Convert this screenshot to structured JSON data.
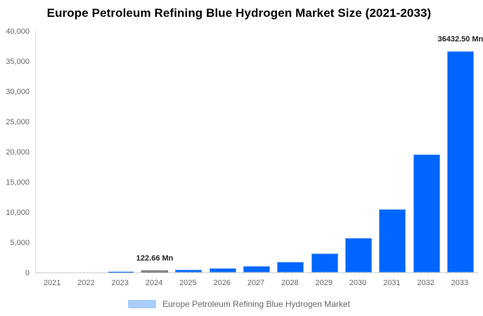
{
  "title": "Europe Petroleum Refining Blue Hydrogen Market Size (2021-2033)",
  "legend": {
    "label": "Europe Petroleum Refining Blue Hydrogen Market",
    "swatch_color": "#a9cdf8"
  },
  "chart_data": {
    "type": "bar",
    "title": "Europe Petroleum Refining Blue Hydrogen Market Size (2021-2033)",
    "series_name": "Europe Petroleum Refining Blue Hydrogen Market",
    "categories": [
      "2021",
      "2022",
      "2023",
      "2024",
      "2025",
      "2026",
      "2027",
      "2028",
      "2029",
      "2030",
      "2031",
      "2032",
      "2033"
    ],
    "values": [
      18.4,
      34.6,
      65.2,
      122.66,
      230.9,
      434.7,
      818.4,
      1540.8,
      2900.8,
      5460.9,
      10280.7,
      19354.5,
      36432.5
    ],
    "unit": "Mn",
    "xlabel": "",
    "ylabel": "",
    "ylim": [
      0,
      40000
    ],
    "y_tick_values": [
      0,
      5000,
      10000,
      15000,
      20000,
      25000,
      30000,
      35000,
      40000
    ],
    "y_tick_labels": [
      "0",
      "5,000",
      "10,000",
      "15,000",
      "20,000",
      "25,000",
      "30,000",
      "35,000",
      "40,000"
    ],
    "grid": false,
    "legend_position": "bottom",
    "bar_color": "#0066ff",
    "bar_edge_color": "#6aa3f5",
    "highlight_index": 3,
    "highlight_color": "#a0a0a0",
    "highlight_edge_color": "#6e6e6e",
    "data_labels": [
      {
        "index": 3,
        "text": "122.66 Mn"
      },
      {
        "index": 12,
        "text": "36432.50 Mn"
      }
    ]
  }
}
